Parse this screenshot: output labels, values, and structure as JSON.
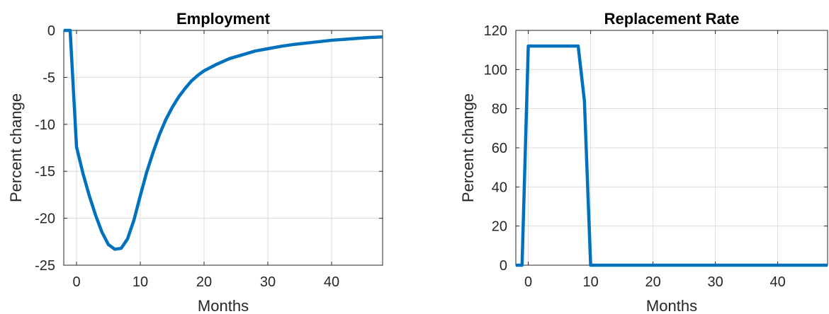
{
  "chart_data": [
    {
      "type": "line",
      "title": "Employment",
      "xlabel": "Months",
      "ylabel": "Percent change",
      "xlim": [
        -2,
        48
      ],
      "ylim": [
        -25,
        0
      ],
      "xticks": [
        0,
        10,
        20,
        30,
        40
      ],
      "yticks": [
        -25,
        -20,
        -15,
        -10,
        -5,
        0
      ],
      "grid": true,
      "line_color": "#0072BD",
      "series": [
        {
          "x": [
            -2,
            -1,
            0,
            1,
            2,
            3,
            4,
            5,
            6,
            7,
            8,
            9,
            10,
            11,
            12,
            13,
            14,
            15,
            16,
            17,
            18,
            19,
            20,
            22,
            24,
            26,
            28,
            30,
            32,
            34,
            36,
            38,
            40,
            42,
            44,
            46,
            48
          ],
          "y": [
            0,
            0,
            -12.4,
            -15.2,
            -17.6,
            -19.7,
            -21.5,
            -22.8,
            -23.3,
            -23.2,
            -22.2,
            -20.2,
            -17.6,
            -15.1,
            -13.0,
            -11.1,
            -9.5,
            -8.2,
            -7.1,
            -6.2,
            -5.4,
            -4.8,
            -4.3,
            -3.6,
            -3.0,
            -2.6,
            -2.2,
            -1.95,
            -1.7,
            -1.5,
            -1.35,
            -1.2,
            -1.05,
            -0.95,
            -0.85,
            -0.75,
            -0.7
          ]
        }
      ]
    },
    {
      "type": "line",
      "title": "Replacement Rate",
      "xlabel": "Months",
      "ylabel": "Percent change",
      "xlim": [
        -2,
        48
      ],
      "ylim": [
        0,
        120
      ],
      "xticks": [
        0,
        10,
        20,
        30,
        40
      ],
      "yticks": [
        0,
        20,
        40,
        60,
        80,
        100,
        120
      ],
      "grid": true,
      "line_color": "#0072BD",
      "series": [
        {
          "x": [
            -2,
            -1,
            0,
            1,
            2,
            3,
            4,
            5,
            6,
            7,
            8,
            9,
            10,
            11,
            48
          ],
          "y": [
            0,
            0,
            112,
            112,
            112,
            112,
            112,
            112,
            112,
            112,
            112,
            84,
            0,
            0,
            0
          ]
        }
      ]
    }
  ]
}
